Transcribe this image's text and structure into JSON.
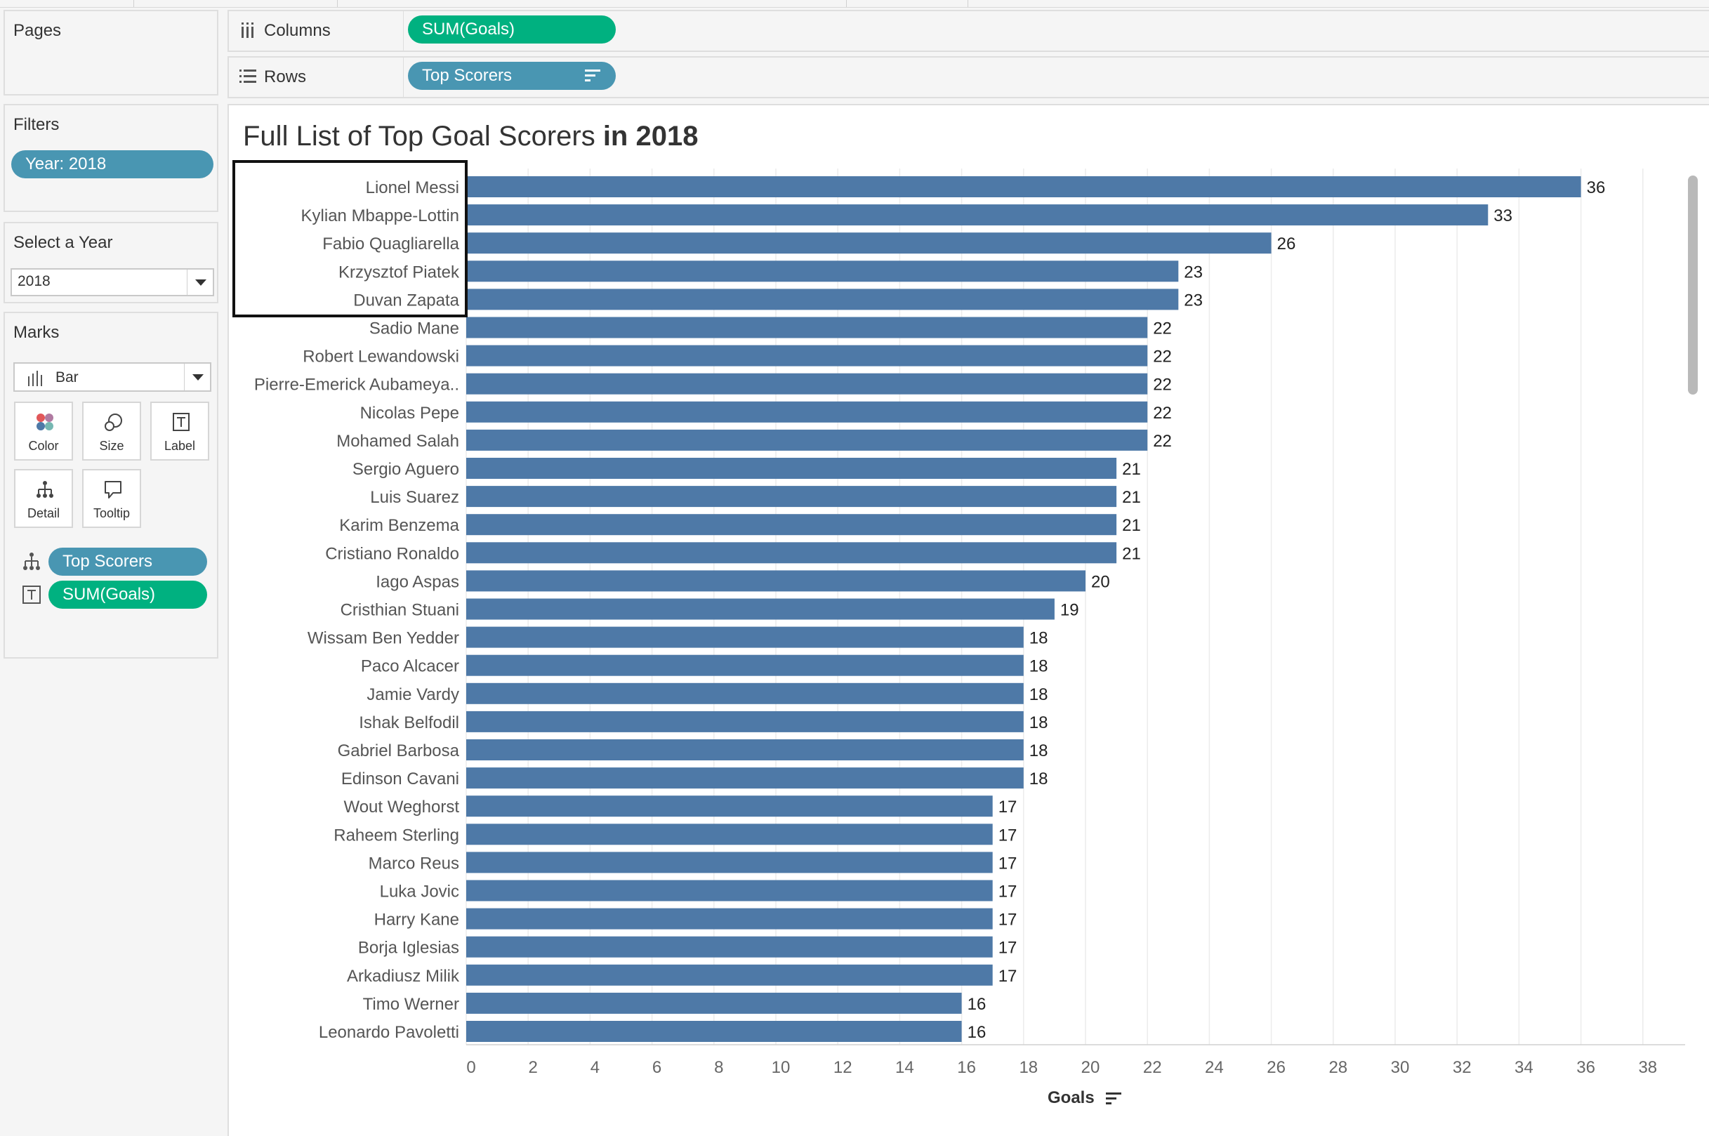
{
  "panels": {
    "pages_title": "Pages",
    "filters_title": "Filters",
    "filter_pill": "Year: 2018",
    "select_year_title": "Select a Year",
    "select_year_value": "2018",
    "marks_title": "Marks",
    "mark_type": "Bar",
    "mark_buttons": {
      "color": "Color",
      "size": "Size",
      "label": "Label",
      "detail": "Detail",
      "tooltip": "Tooltip"
    },
    "mark_pills": {
      "detail_field": "Top Scorers",
      "label_field": "SUM(Goals)"
    }
  },
  "shelves": {
    "columns_label": "Columns",
    "columns_pill": "SUM(Goals)",
    "rows_label": "Rows",
    "rows_pill": "Top Scorers"
  },
  "colors": {
    "bar": "#4e79a7",
    "pill_blue": "#4996b2",
    "pill_green": "#00b180"
  },
  "icons": [
    "columns-icon",
    "rows-icon",
    "sort-icon",
    "bar-chart-icon",
    "color-icon",
    "size-icon",
    "label-icon",
    "detail-icon",
    "tooltip-icon"
  ],
  "viz": {
    "title_prefix": "Full List of Top Goal Scorers ",
    "title_bold": "in 2018"
  },
  "chart_data": {
    "type": "bar",
    "orientation": "horizontal",
    "categories": [
      "Lionel Messi",
      "Kylian Mbappe-Lottin",
      "Fabio Quagliarella",
      "Krzysztof Piatek",
      "Duvan Zapata",
      "Sadio Mane",
      "Robert Lewandowski",
      "Pierre-Emerick Aubameya..",
      "Nicolas Pepe",
      "Mohamed Salah",
      "Sergio Aguero",
      "Luis Suarez",
      "Karim Benzema",
      "Cristiano Ronaldo",
      "Iago Aspas",
      "Cristhian Stuani",
      "Wissam Ben Yedder",
      "Paco Alcacer",
      "Jamie Vardy",
      "Ishak Belfodil",
      "Gabriel Barbosa",
      "Edinson Cavani",
      "Wout Weghorst",
      "Raheem Sterling",
      "Marco Reus",
      "Luka Jovic",
      "Harry Kane",
      "Borja Iglesias",
      "Arkadiusz Milik",
      "Timo Werner",
      "Leonardo Pavoletti"
    ],
    "values": [
      36,
      33,
      26,
      23,
      23,
      22,
      22,
      22,
      22,
      22,
      21,
      21,
      21,
      21,
      20,
      19,
      18,
      18,
      18,
      18,
      18,
      18,
      17,
      17,
      17,
      17,
      17,
      17,
      17,
      16,
      16
    ],
    "xlabel": "Goals",
    "xlim": [
      0,
      38
    ],
    "xticks": [
      0,
      2,
      4,
      6,
      8,
      10,
      12,
      14,
      16,
      18,
      20,
      22,
      24,
      26,
      28,
      30,
      32,
      34,
      36,
      38
    ],
    "grid": true
  }
}
